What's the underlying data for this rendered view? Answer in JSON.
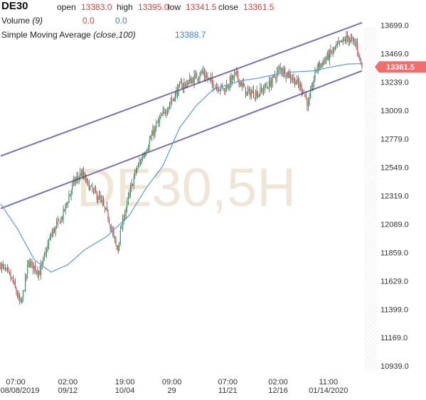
{
  "header": {
    "symbol": "DE30",
    "open_label": "open",
    "open_value": "13383.0",
    "high_label": "high",
    "high_value": "13395.0",
    "low_label": "low",
    "low_value": "13341.5",
    "close_label": "close",
    "close_value": "13361.5",
    "volume_label": "Volume",
    "volume_param": "(9)",
    "volume_value_1": "0.0",
    "volume_value_2": "0.0",
    "sma_label": "Simple Moving Average",
    "sma_param": "(close,100)",
    "sma_value": "13388.7"
  },
  "watermark": "DE30,5H",
  "price_tag": "13361.5",
  "colors": {
    "up": "#22a050",
    "down": "#e0403a",
    "sma": "#5b9bd8",
    "channel": "#7a70b8",
    "price_tag": "#f26d6d",
    "watermark": "#efe6d8"
  },
  "chart_data": {
    "type": "candlestick",
    "symbol": "DE30",
    "timeframe": "5H",
    "ylim": [
      10900,
      13800
    ],
    "y_ticks": [
      "13699.0",
      "13469.0",
      "13239.0",
      "13009.0",
      "12779.0",
      "12549.0",
      "12319.0",
      "12089.0",
      "11859.0",
      "11629.0",
      "11399.0",
      "11169.0",
      "10939.0"
    ],
    "x_ticks": [
      {
        "time": "07:00",
        "date": "08/08/2019"
      },
      {
        "time": "02:00",
        "date": "09/12"
      },
      {
        "time": "19:00",
        "date": "10/04"
      },
      {
        "time": "09:00",
        "date": "29"
      },
      {
        "time": "07:00",
        "date": "11/21"
      },
      {
        "time": "02:00",
        "date": "12/16"
      },
      {
        "time": "11:00",
        "date": "01/14/2020"
      }
    ],
    "close_anchors": [
      [
        0,
        11760
      ],
      [
        10,
        11640
      ],
      [
        18,
        11430
      ],
      [
        25,
        11780
      ],
      [
        35,
        11700
      ],
      [
        45,
        12000
      ],
      [
        55,
        12150
      ],
      [
        65,
        12420
      ],
      [
        72,
        12500
      ],
      [
        80,
        12380
      ],
      [
        88,
        12300
      ],
      [
        96,
        12150
      ],
      [
        104,
        11880
      ],
      [
        110,
        12150
      ],
      [
        120,
        12500
      ],
      [
        130,
        12700
      ],
      [
        140,
        12900
      ],
      [
        150,
        13050
      ],
      [
        160,
        13200
      ],
      [
        170,
        13250
      ],
      [
        180,
        13320
      ],
      [
        190,
        13220
      ],
      [
        200,
        13180
      ],
      [
        210,
        13300
      ],
      [
        220,
        13150
      ],
      [
        230,
        13150
      ],
      [
        240,
        13220
      ],
      [
        250,
        13350
      ],
      [
        260,
        13280
      ],
      [
        270,
        13180
      ],
      [
        275,
        13050
      ],
      [
        282,
        13350
      ],
      [
        290,
        13420
      ],
      [
        300,
        13520
      ],
      [
        310,
        13600
      ],
      [
        318,
        13540
      ],
      [
        323,
        13361.5
      ]
    ],
    "sma_anchors": [
      [
        0,
        12250
      ],
      [
        15,
        12050
      ],
      [
        30,
        11800
      ],
      [
        45,
        11700
      ],
      [
        60,
        11760
      ],
      [
        75,
        11880
      ],
      [
        95,
        11990
      ],
      [
        115,
        12160
      ],
      [
        130,
        12380
      ],
      [
        145,
        12560
      ],
      [
        160,
        12870
      ],
      [
        175,
        13050
      ],
      [
        190,
        13180
      ],
      [
        200,
        13210
      ],
      [
        215,
        13250
      ],
      [
        230,
        13270
      ],
      [
        245,
        13300
      ],
      [
        260,
        13320
      ],
      [
        280,
        13330
      ],
      [
        295,
        13360
      ],
      [
        310,
        13385
      ],
      [
        323,
        13388.7
      ]
    ],
    "channel_upper": {
      "x0": 0,
      "y0": 12640,
      "x1": 323,
      "y1": 13720
    },
    "channel_lower": {
      "x0": 0,
      "y0": 12215,
      "x1": 323,
      "y1": 13330
    },
    "x_tick_bar_index": [
      0,
      60,
      111,
      153,
      203,
      248,
      293
    ],
    "last_close": 13361.5,
    "sma_last": 13388.7
  }
}
